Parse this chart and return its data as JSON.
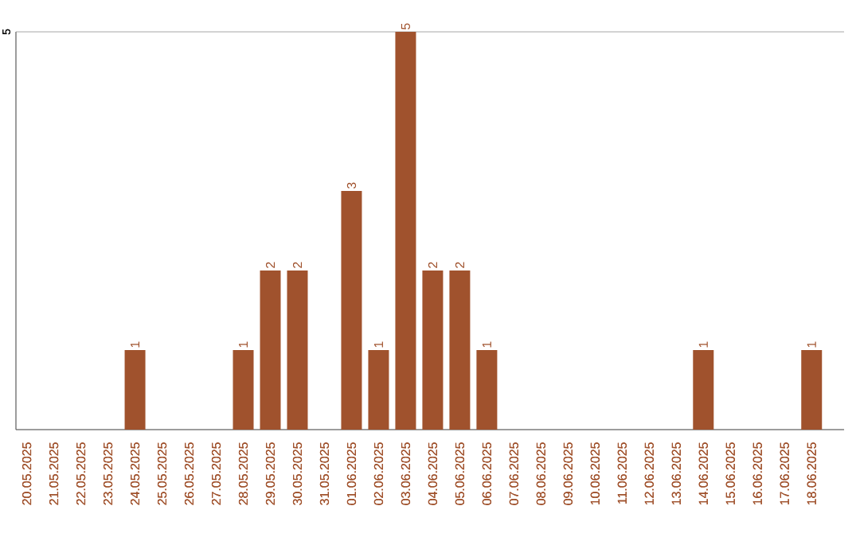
{
  "chart_data": {
    "type": "bar",
    "categories": [
      "20.05.2025",
      "21.05.2025",
      "22.05.2025",
      "23.05.2025",
      "24.05.2025",
      "25.05.2025",
      "26.05.2025",
      "27.05.2025",
      "28.05.2025",
      "29.05.2025",
      "30.05.2025",
      "31.05.2025",
      "01.06.2025",
      "02.06.2025",
      "03.06.2025",
      "04.06.2025",
      "05.06.2025",
      "06.06.2025",
      "07.06.2025",
      "08.06.2025",
      "09.06.2025",
      "10.06.2025",
      "11.06.2025",
      "12.06.2025",
      "13.06.2025",
      "14.06.2025",
      "15.06.2025",
      "16.06.2025",
      "17.06.2025",
      "18.06.2025"
    ],
    "values": [
      0,
      0,
      0,
      0,
      1,
      0,
      0,
      0,
      1,
      2,
      2,
      0,
      3,
      1,
      5,
      2,
      2,
      1,
      0,
      0,
      0,
      0,
      0,
      0,
      0,
      1,
      0,
      0,
      0,
      1
    ],
    "value_labels": [
      null,
      null,
      null,
      null,
      "1",
      null,
      null,
      null,
      "1",
      "2",
      "2",
      null,
      "3",
      "1",
      "5",
      "2",
      "2",
      "1",
      null,
      null,
      null,
      null,
      null,
      null,
      null,
      "1",
      null,
      null,
      null,
      "1"
    ],
    "color": "#a0522d",
    "ylim": [
      0,
      5
    ],
    "yticks": [
      5
    ],
    "grid": "y"
  }
}
